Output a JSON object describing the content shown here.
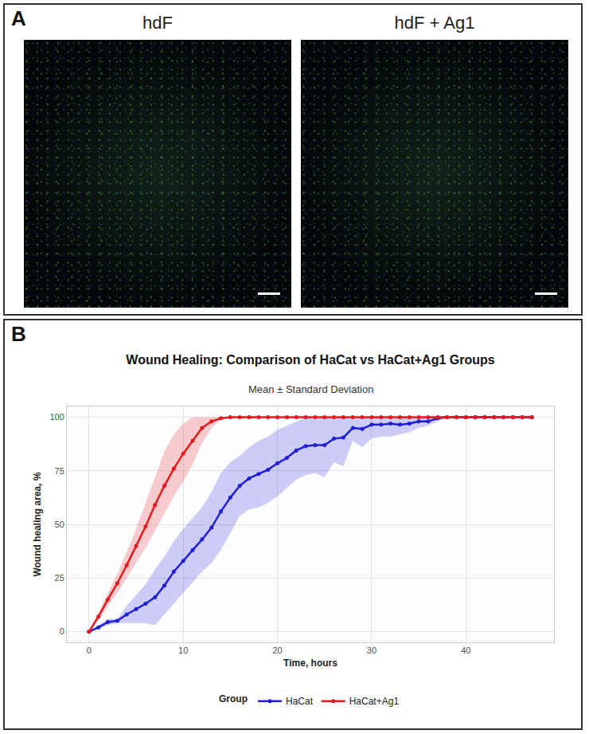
{
  "panels": [
    {
      "label": "A",
      "image_titles": [
        "hdF",
        "hdF + Ag1"
      ]
    },
    {
      "label": "B"
    }
  ],
  "chart_data": {
    "type": "line",
    "title": "Wound Healing: Comparison of HaCat vs HaCat+Ag1 Groups",
    "subtitle": "Mean ± Standard Deviation",
    "x_label": "Time, hours",
    "y_label": "Wound healing area, %",
    "legend_title": "Group",
    "legend": "bottom",
    "grid": true,
    "marker": "circle",
    "xlim": [
      -2.35,
      49.35
    ],
    "xticks": [
      0,
      10,
      20,
      30,
      40
    ],
    "ylim": [
      -5,
      105
    ],
    "yticks": [
      0,
      25,
      50,
      75,
      100
    ],
    "x": [
      0,
      1,
      2,
      3,
      4,
      5,
      6,
      7,
      8,
      9,
      10,
      11,
      12,
      13,
      14,
      15,
      16,
      17,
      18,
      19,
      20,
      21,
      22,
      23,
      24,
      25,
      26,
      27,
      28,
      29,
      30,
      31,
      32,
      33,
      34,
      35,
      36,
      37,
      38,
      39,
      40,
      41,
      42,
      43,
      44,
      45,
      46,
      47
    ],
    "series": [
      {
        "name": "HaCat",
        "color": "#1f1fd6",
        "values": [
          0,
          2,
          4.5,
          5,
          8,
          10.5,
          13,
          16,
          21.5,
          28,
          33,
          38,
          43,
          48.5,
          56,
          62.5,
          68,
          71.5,
          73.5,
          75.5,
          78.5,
          81,
          84.5,
          86.5,
          87,
          87,
          90,
          90.5,
          95,
          94.5,
          96.5,
          96.5,
          97,
          96.5,
          97,
          98,
          98,
          99.5,
          100,
          100,
          100,
          100,
          100,
          100,
          100,
          100,
          100,
          100
        ],
        "lower": [
          0,
          1,
          3,
          4,
          4,
          4,
          4,
          3,
          8,
          13,
          18,
          23,
          28,
          32,
          38,
          46,
          54,
          57,
          58,
          60,
          63,
          67,
          71,
          73,
          74,
          72,
          79,
          77,
          89,
          86,
          90,
          91,
          91,
          92,
          93,
          95,
          96,
          98,
          100,
          100,
          100,
          100,
          100,
          100,
          100,
          100,
          100,
          100
        ],
        "upper": [
          0,
          3,
          6,
          6,
          12,
          17,
          22,
          29,
          35,
          42,
          48,
          53,
          58,
          65,
          74,
          79,
          82,
          86,
          89,
          91,
          94,
          96,
          98,
          100,
          100,
          100,
          100,
          100,
          100,
          100,
          100,
          100,
          100,
          100,
          100,
          100,
          100,
          100,
          100,
          100,
          100,
          100,
          100,
          100,
          100,
          100,
          100,
          100
        ]
      },
      {
        "name": "HaCat+Ag1",
        "color": "#e31a1c",
        "values": [
          0,
          7,
          15,
          22.5,
          31,
          40,
          49,
          59,
          68,
          76,
          83,
          89,
          95,
          98,
          99.5,
          100,
          100,
          100,
          100,
          100,
          100,
          100,
          100,
          100,
          100,
          100,
          100,
          100,
          100,
          100,
          100,
          100,
          100,
          100,
          100,
          100,
          100,
          100,
          100,
          100,
          100,
          100,
          100,
          100,
          100,
          100,
          100,
          100
        ],
        "lower": [
          0,
          5,
          12,
          18,
          25,
          32,
          39,
          47,
          55,
          63,
          70,
          78,
          88,
          95,
          99,
          100,
          100,
          100,
          100,
          100,
          100,
          100,
          100,
          100,
          100,
          100,
          100,
          100,
          100,
          100,
          100,
          100,
          100,
          100,
          100,
          100,
          100,
          100,
          100,
          100,
          100,
          100,
          100,
          100,
          100,
          100,
          100,
          100
        ],
        "upper": [
          0,
          9,
          18,
          27,
          37,
          48,
          60,
          72,
          84,
          92,
          97,
          100,
          100,
          100,
          100,
          100,
          100,
          100,
          100,
          100,
          100,
          100,
          100,
          100,
          100,
          100,
          100,
          100,
          100,
          100,
          100,
          100,
          100,
          100,
          100,
          100,
          100,
          100,
          100,
          100,
          100,
          100,
          100,
          100,
          100,
          100,
          100,
          100
        ]
      }
    ]
  }
}
